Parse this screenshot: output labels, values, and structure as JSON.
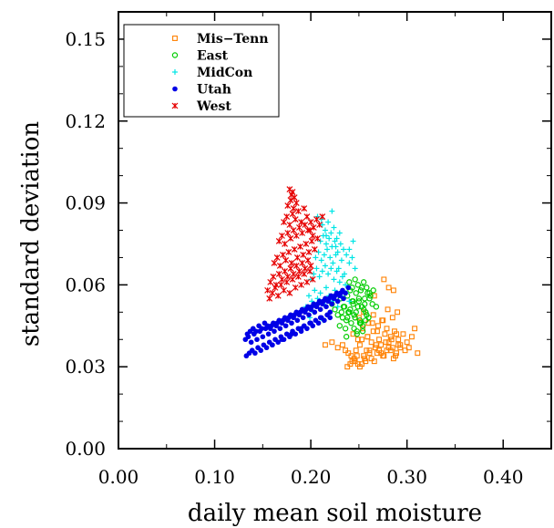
{
  "chart_data": {
    "type": "scatter",
    "title": "",
    "xlabel": "daily mean soil moisture",
    "ylabel": "standard deviation",
    "xlim": [
      0.0,
      0.45
    ],
    "ylim": [
      0.0,
      0.16
    ],
    "xticks": [
      0.0,
      0.1,
      0.2,
      0.3,
      0.4
    ],
    "xtick_labels": [
      "0.00",
      "0.10",
      "0.20",
      "0.30",
      "0.40"
    ],
    "yticks": [
      0.0,
      0.03,
      0.06,
      0.09,
      0.12,
      0.15
    ],
    "ytick_labels": [
      "0.00",
      "0.03",
      "0.06",
      "0.09",
      "0.12",
      "0.15"
    ],
    "grid": false,
    "legend_position": "top-left",
    "series": [
      {
        "name": "Mis−Tenn",
        "marker": "square",
        "color": "#ff8000",
        "x": [
          0.215,
          0.222,
          0.228,
          0.233,
          0.236,
          0.239,
          0.242,
          0.245,
          0.247,
          0.249,
          0.251,
          0.253,
          0.255,
          0.257,
          0.259,
          0.261,
          0.263,
          0.265,
          0.267,
          0.269,
          0.271,
          0.273,
          0.275,
          0.277,
          0.279,
          0.281,
          0.283,
          0.285,
          0.287,
          0.289,
          0.291,
          0.293,
          0.296,
          0.298,
          0.3,
          0.302,
          0.305,
          0.308,
          0.311,
          0.241,
          0.246,
          0.251,
          0.256,
          0.261,
          0.266,
          0.271,
          0.276,
          0.281,
          0.286,
          0.291,
          0.244,
          0.249,
          0.254,
          0.259,
          0.264,
          0.269,
          0.274,
          0.279,
          0.284,
          0.289,
          0.238,
          0.243,
          0.248,
          0.253,
          0.258,
          0.263,
          0.268,
          0.273,
          0.278,
          0.283,
          0.288,
          0.293,
          0.25,
          0.255,
          0.26,
          0.265,
          0.27,
          0.275,
          0.28,
          0.285,
          0.29,
          0.276,
          0.281,
          0.286,
          0.266
        ],
        "y": [
          0.038,
          0.039,
          0.037,
          0.038,
          0.036,
          0.035,
          0.034,
          0.033,
          0.036,
          0.031,
          0.038,
          0.04,
          0.034,
          0.032,
          0.041,
          0.036,
          0.039,
          0.043,
          0.037,
          0.035,
          0.04,
          0.038,
          0.034,
          0.042,
          0.036,
          0.039,
          0.041,
          0.037,
          0.043,
          0.035,
          0.04,
          0.038,
          0.042,
          0.036,
          0.039,
          0.037,
          0.041,
          0.044,
          0.035,
          0.031,
          0.032,
          0.03,
          0.033,
          0.035,
          0.032,
          0.036,
          0.034,
          0.037,
          0.033,
          0.038,
          0.042,
          0.04,
          0.044,
          0.041,
          0.046,
          0.043,
          0.047,
          0.044,
          0.04,
          0.042,
          0.03,
          0.032,
          0.034,
          0.031,
          0.036,
          0.033,
          0.038,
          0.035,
          0.039,
          0.036,
          0.034,
          0.037,
          0.048,
          0.05,
          0.046,
          0.049,
          0.045,
          0.047,
          0.051,
          0.048,
          0.05,
          0.062,
          0.059,
          0.058,
          0.056
        ]
      },
      {
        "name": "East",
        "marker": "circle",
        "color": "#00cc00",
        "x": [
          0.222,
          0.225,
          0.228,
          0.231,
          0.234,
          0.237,
          0.24,
          0.243,
          0.246,
          0.249,
          0.252,
          0.255,
          0.258,
          0.261,
          0.264,
          0.23,
          0.233,
          0.236,
          0.239,
          0.242,
          0.245,
          0.248,
          0.251,
          0.254,
          0.257,
          0.26,
          0.238,
          0.241,
          0.244,
          0.247,
          0.25,
          0.253,
          0.256,
          0.259,
          0.262,
          0.265,
          0.268,
          0.24,
          0.243,
          0.246,
          0.249,
          0.252,
          0.255,
          0.258,
          0.261,
          0.232,
          0.235,
          0.238,
          0.241,
          0.244,
          0.247,
          0.25,
          0.253,
          0.256,
          0.245,
          0.248,
          0.251,
          0.254,
          0.257,
          0.237
        ],
        "y": [
          0.053,
          0.051,
          0.049,
          0.055,
          0.052,
          0.047,
          0.05,
          0.054,
          0.048,
          0.052,
          0.046,
          0.051,
          0.049,
          0.055,
          0.053,
          0.045,
          0.048,
          0.044,
          0.05,
          0.046,
          0.049,
          0.043,
          0.047,
          0.045,
          0.05,
          0.048,
          0.056,
          0.058,
          0.054,
          0.057,
          0.055,
          0.059,
          0.053,
          0.057,
          0.056,
          0.058,
          0.052,
          0.061,
          0.059,
          0.062,
          0.06,
          0.058,
          0.061,
          0.059,
          0.057,
          0.05,
          0.052,
          0.048,
          0.051,
          0.053,
          0.05,
          0.054,
          0.052,
          0.055,
          0.044,
          0.042,
          0.046,
          0.043,
          0.047,
          0.041
        ]
      },
      {
        "name": "MidCon",
        "marker": "plus",
        "color": "#00e5e5",
        "x": [
          0.195,
          0.198,
          0.201,
          0.204,
          0.207,
          0.21,
          0.213,
          0.216,
          0.219,
          0.222,
          0.225,
          0.228,
          0.231,
          0.234,
          0.237,
          0.24,
          0.2,
          0.203,
          0.206,
          0.209,
          0.212,
          0.215,
          0.218,
          0.221,
          0.224,
          0.227,
          0.23,
          0.233,
          0.236,
          0.205,
          0.208,
          0.211,
          0.214,
          0.217,
          0.22,
          0.223,
          0.226,
          0.229,
          0.232,
          0.235,
          0.21,
          0.213,
          0.216,
          0.219,
          0.222,
          0.225,
          0.228,
          0.231,
          0.234,
          0.237,
          0.24,
          0.243,
          0.246,
          0.212,
          0.215,
          0.218,
          0.221,
          0.224,
          0.227,
          0.23,
          0.207,
          0.211,
          0.216,
          0.222,
          0.226,
          0.24,
          0.244,
          0.203,
          0.199,
          0.213
        ],
        "y": [
          0.052,
          0.056,
          0.054,
          0.058,
          0.055,
          0.057,
          0.053,
          0.059,
          0.056,
          0.054,
          0.058,
          0.052,
          0.056,
          0.055,
          0.057,
          0.054,
          0.062,
          0.064,
          0.066,
          0.063,
          0.065,
          0.067,
          0.064,
          0.066,
          0.062,
          0.065,
          0.061,
          0.063,
          0.06,
          0.07,
          0.072,
          0.069,
          0.071,
          0.073,
          0.07,
          0.068,
          0.071,
          0.066,
          0.069,
          0.064,
          0.076,
          0.078,
          0.075,
          0.077,
          0.074,
          0.076,
          0.072,
          0.075,
          0.073,
          0.071,
          0.068,
          0.07,
          0.066,
          0.082,
          0.08,
          0.083,
          0.079,
          0.081,
          0.077,
          0.079,
          0.085,
          0.084,
          0.078,
          0.087,
          0.074,
          0.073,
          0.076,
          0.05,
          0.048,
          0.047
        ]
      },
      {
        "name": "Utah",
        "marker": "dot",
        "color": "#0000e6",
        "x": [
          0.133,
          0.136,
          0.139,
          0.142,
          0.145,
          0.148,
          0.151,
          0.154,
          0.157,
          0.16,
          0.163,
          0.166,
          0.169,
          0.172,
          0.175,
          0.178,
          0.181,
          0.184,
          0.187,
          0.19,
          0.193,
          0.196,
          0.199,
          0.202,
          0.205,
          0.208,
          0.211,
          0.214,
          0.217,
          0.22,
          0.132,
          0.135,
          0.138,
          0.141,
          0.144,
          0.147,
          0.15,
          0.153,
          0.156,
          0.159,
          0.162,
          0.165,
          0.168,
          0.171,
          0.174,
          0.177,
          0.18,
          0.183,
          0.186,
          0.189,
          0.192,
          0.195,
          0.198,
          0.201,
          0.204,
          0.207,
          0.21,
          0.213,
          0.216,
          0.219,
          0.222,
          0.225,
          0.228,
          0.231,
          0.234,
          0.134,
          0.137,
          0.14,
          0.143,
          0.146,
          0.149,
          0.152,
          0.155,
          0.158,
          0.161,
          0.164,
          0.167,
          0.17,
          0.173,
          0.176,
          0.179,
          0.182,
          0.185,
          0.188,
          0.191,
          0.194,
          0.197,
          0.2,
          0.203,
          0.206,
          0.209,
          0.212,
          0.215,
          0.218,
          0.221,
          0.224,
          0.227,
          0.23,
          0.233,
          0.236,
          0.239,
          0.16,
          0.17,
          0.18,
          0.19,
          0.2,
          0.21,
          0.22
        ],
        "y": [
          0.034,
          0.035,
          0.036,
          0.035,
          0.037,
          0.036,
          0.038,
          0.037,
          0.039,
          0.038,
          0.04,
          0.039,
          0.041,
          0.04,
          0.042,
          0.041,
          0.043,
          0.042,
          0.044,
          0.043,
          0.045,
          0.044,
          0.046,
          0.045,
          0.047,
          0.046,
          0.048,
          0.047,
          0.049,
          0.048,
          0.04,
          0.041,
          0.039,
          0.042,
          0.04,
          0.043,
          0.041,
          0.044,
          0.042,
          0.045,
          0.043,
          0.046,
          0.044,
          0.047,
          0.045,
          0.048,
          0.046,
          0.049,
          0.047,
          0.05,
          0.048,
          0.051,
          0.049,
          0.052,
          0.05,
          0.053,
          0.051,
          0.054,
          0.052,
          0.055,
          0.053,
          0.056,
          0.054,
          0.057,
          0.055,
          0.042,
          0.043,
          0.044,
          0.043,
          0.045,
          0.044,
          0.046,
          0.045,
          0.044,
          0.046,
          0.045,
          0.047,
          0.046,
          0.048,
          0.047,
          0.049,
          0.048,
          0.05,
          0.049,
          0.051,
          0.05,
          0.052,
          0.051,
          0.053,
          0.052,
          0.054,
          0.053,
          0.055,
          0.054,
          0.056,
          0.055,
          0.057,
          0.056,
          0.058,
          0.057,
          0.059,
          0.038,
          0.04,
          0.042,
          0.044,
          0.046,
          0.048,
          0.05
        ]
      },
      {
        "name": "West",
        "marker": "star",
        "color": "#e60000",
        "x": [
          0.155,
          0.158,
          0.161,
          0.164,
          0.167,
          0.17,
          0.173,
          0.176,
          0.179,
          0.182,
          0.185,
          0.188,
          0.191,
          0.194,
          0.197,
          0.2,
          0.157,
          0.16,
          0.163,
          0.166,
          0.169,
          0.172,
          0.175,
          0.178,
          0.181,
          0.184,
          0.187,
          0.19,
          0.193,
          0.196,
          0.199,
          0.202,
          0.162,
          0.165,
          0.168,
          0.171,
          0.174,
          0.177,
          0.18,
          0.183,
          0.186,
          0.189,
          0.192,
          0.195,
          0.198,
          0.201,
          0.204,
          0.207,
          0.167,
          0.17,
          0.173,
          0.176,
          0.179,
          0.182,
          0.185,
          0.188,
          0.191,
          0.194,
          0.197,
          0.2,
          0.203,
          0.206,
          0.209,
          0.212,
          0.172,
          0.175,
          0.178,
          0.181,
          0.184,
          0.187,
          0.19,
          0.193,
          0.196,
          0.199,
          0.202,
          0.176,
          0.179,
          0.182,
          0.185,
          0.18,
          0.183,
          0.178,
          0.181
        ],
        "y": [
          0.058,
          0.061,
          0.063,
          0.06,
          0.064,
          0.062,
          0.065,
          0.063,
          0.066,
          0.064,
          0.067,
          0.065,
          0.068,
          0.066,
          0.069,
          0.067,
          0.055,
          0.057,
          0.059,
          0.056,
          0.06,
          0.058,
          0.061,
          0.057,
          0.062,
          0.059,
          0.063,
          0.06,
          0.064,
          0.061,
          0.065,
          0.062,
          0.068,
          0.07,
          0.067,
          0.071,
          0.069,
          0.072,
          0.068,
          0.073,
          0.07,
          0.074,
          0.071,
          0.075,
          0.072,
          0.076,
          0.073,
          0.077,
          0.076,
          0.078,
          0.075,
          0.079,
          0.077,
          0.08,
          0.078,
          0.081,
          0.079,
          0.082,
          0.08,
          0.083,
          0.081,
          0.084,
          0.082,
          0.085,
          0.083,
          0.085,
          0.082,
          0.086,
          0.084,
          0.087,
          0.083,
          0.088,
          0.085,
          0.08,
          0.078,
          0.089,
          0.091,
          0.088,
          0.09,
          0.093,
          0.092,
          0.095,
          0.094
        ]
      }
    ]
  }
}
